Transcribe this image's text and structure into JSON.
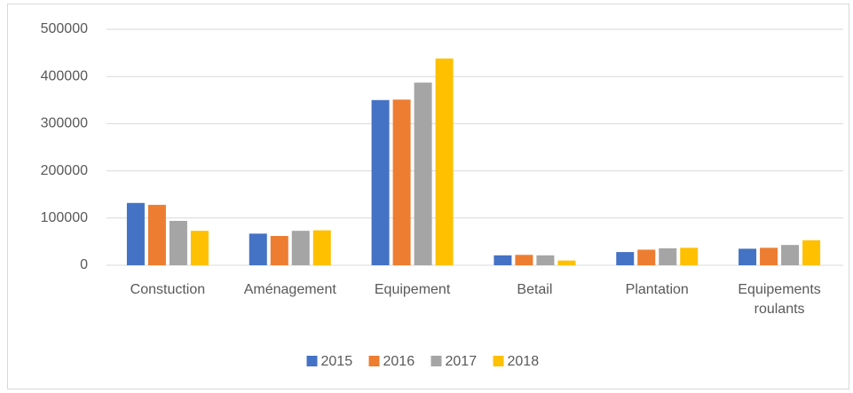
{
  "chart_data": {
    "type": "bar",
    "categories": [
      "Constuction",
      "Aménagement",
      "Equipement",
      "Betail",
      "Plantation",
      "Equipements roulants"
    ],
    "series": [
      {
        "name": "2015",
        "color": "#4472c4",
        "values": [
          132000,
          67000,
          350000,
          21000,
          28000,
          35000
        ]
      },
      {
        "name": "2016",
        "color": "#ed7d31",
        "values": [
          128000,
          62000,
          351000,
          22000,
          33000,
          37000
        ]
      },
      {
        "name": "2017",
        "color": "#a5a5a5",
        "values": [
          94000,
          73000,
          387000,
          21000,
          36000,
          43000
        ]
      },
      {
        "name": "2018",
        "color": "#ffc000",
        "values": [
          73000,
          74000,
          438000,
          10000,
          37000,
          53000
        ]
      }
    ],
    "ylim": [
      0,
      500000
    ],
    "yticks": [
      0,
      100000,
      200000,
      300000,
      400000,
      500000
    ],
    "grid": true,
    "legend": "bottom"
  }
}
